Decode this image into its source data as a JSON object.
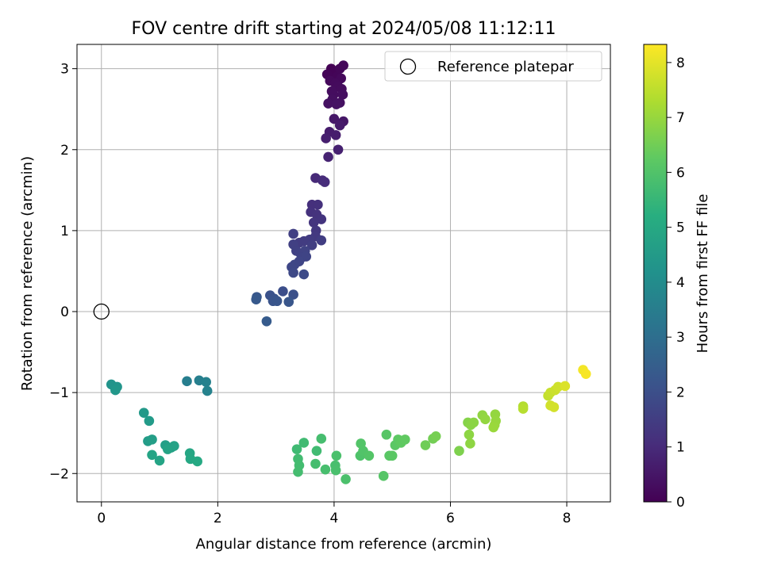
{
  "chart_data": {
    "type": "scatter",
    "title": "FOV centre drift starting at 2024/05/08 11:12:11",
    "xlabel": "Angular distance from reference (arcmin)",
    "ylabel": "Rotation from reference (arcmin)",
    "xlim": [
      -0.42,
      8.75
    ],
    "ylim": [
      -2.35,
      3.3
    ],
    "x_ticks": [
      0,
      2,
      4,
      6,
      8
    ],
    "y_ticks": [
      -2,
      -1,
      0,
      1,
      2,
      3
    ],
    "grid": true,
    "colorbar": {
      "label": "Hours from first FF file",
      "range": [
        0,
        8.33
      ],
      "ticks": [
        0,
        1,
        2,
        3,
        4,
        5,
        6,
        7,
        8
      ],
      "colormap": "viridis"
    },
    "legend": {
      "placement": "top-right",
      "entries": [
        {
          "label": "Reference platepar",
          "marker": "open-circle"
        }
      ]
    },
    "reference_point": {
      "x": 0,
      "y": 0
    },
    "series": [
      {
        "name": "FOV centre",
        "points": [
          [
            3.95,
            3.0,
            0.0
          ],
          [
            3.98,
            2.95,
            0.05
          ],
          [
            3.88,
            2.93,
            0.08
          ],
          [
            4.05,
            2.9,
            0.1
          ],
          [
            4.1,
            3.0,
            0.12
          ],
          [
            4.16,
            3.04,
            0.15
          ],
          [
            4.12,
            2.88,
            0.18
          ],
          [
            3.93,
            2.85,
            0.2
          ],
          [
            4.02,
            2.82,
            0.22
          ],
          [
            4.07,
            2.78,
            0.24
          ],
          [
            4.13,
            2.75,
            0.26
          ],
          [
            3.96,
            2.72,
            0.28
          ],
          [
            3.99,
            2.68,
            0.3
          ],
          [
            4.15,
            2.68,
            0.32
          ],
          [
            3.97,
            2.62,
            0.34
          ],
          [
            4.1,
            2.58,
            0.36
          ],
          [
            3.9,
            2.57,
            0.38
          ],
          [
            4.04,
            2.56,
            0.4
          ],
          [
            4.16,
            2.35,
            0.5
          ],
          [
            4.0,
            2.38,
            0.55
          ],
          [
            4.1,
            2.3,
            0.6
          ],
          [
            3.92,
            2.22,
            0.65
          ],
          [
            4.03,
            2.18,
            0.68
          ],
          [
            3.86,
            2.14,
            0.72
          ],
          [
            4.07,
            2.0,
            0.78
          ],
          [
            3.9,
            1.91,
            0.82
          ],
          [
            3.68,
            1.65,
            1.0
          ],
          [
            3.8,
            1.62,
            1.05
          ],
          [
            3.84,
            1.6,
            1.08
          ],
          [
            3.62,
            1.32,
            1.15
          ],
          [
            3.72,
            1.32,
            1.18
          ],
          [
            3.6,
            1.23,
            1.22
          ],
          [
            3.7,
            1.2,
            1.25
          ],
          [
            3.78,
            1.14,
            1.28
          ],
          [
            3.65,
            1.1,
            1.3
          ],
          [
            3.69,
            1.0,
            1.35
          ],
          [
            3.68,
            0.93,
            1.4
          ],
          [
            3.58,
            0.89,
            1.45
          ],
          [
            3.48,
            0.87,
            1.48
          ],
          [
            3.4,
            0.85,
            1.5
          ],
          [
            3.78,
            0.88,
            1.52
          ],
          [
            3.62,
            0.82,
            1.55
          ],
          [
            3.3,
            0.96,
            1.58
          ],
          [
            3.3,
            0.83,
            1.6
          ],
          [
            3.35,
            0.75,
            1.62
          ],
          [
            3.42,
            0.72,
            1.65
          ],
          [
            3.5,
            0.75,
            1.68
          ],
          [
            3.45,
            0.67,
            1.7
          ],
          [
            3.52,
            0.68,
            1.72
          ],
          [
            3.4,
            0.62,
            1.75
          ],
          [
            3.32,
            0.58,
            1.78
          ],
          [
            3.27,
            0.55,
            1.8
          ],
          [
            3.3,
            0.48,
            1.85
          ],
          [
            3.48,
            0.46,
            1.88
          ],
          [
            3.12,
            0.25,
            2.0
          ],
          [
            3.3,
            0.21,
            2.05
          ],
          [
            2.9,
            0.2,
            2.1
          ],
          [
            2.97,
            0.16,
            2.15
          ],
          [
            2.95,
            0.13,
            2.18
          ],
          [
            3.02,
            0.13,
            2.2
          ],
          [
            3.22,
            0.12,
            2.25
          ],
          [
            2.67,
            0.18,
            2.3
          ],
          [
            2.66,
            0.15,
            2.35
          ],
          [
            2.84,
            -0.12,
            2.4
          ],
          [
            1.47,
            -0.86,
            3.55
          ],
          [
            1.68,
            -0.85,
            3.6
          ],
          [
            1.8,
            -0.87,
            3.65
          ],
          [
            1.82,
            -0.98,
            3.7
          ],
          [
            0.17,
            -0.9,
            4.3
          ],
          [
            0.27,
            -0.93,
            4.35
          ],
          [
            0.24,
            -0.97,
            4.4
          ],
          [
            0.73,
            -1.25,
            4.5
          ],
          [
            0.82,
            -1.35,
            4.55
          ],
          [
            0.8,
            -1.6,
            4.6
          ],
          [
            0.87,
            -1.58,
            4.65
          ],
          [
            1.1,
            -1.65,
            4.7
          ],
          [
            1.2,
            -1.68,
            4.75
          ],
          [
            1.25,
            -1.66,
            4.8
          ],
          [
            1.14,
            -1.7,
            4.85
          ],
          [
            0.87,
            -1.77,
            4.88
          ],
          [
            1.0,
            -1.84,
            4.9
          ],
          [
            1.52,
            -1.75,
            4.95
          ],
          [
            1.53,
            -1.82,
            5.0
          ],
          [
            1.65,
            -1.85,
            5.05
          ],
          [
            3.36,
            -1.7,
            5.7
          ],
          [
            3.48,
            -1.62,
            5.72
          ],
          [
            3.7,
            -1.72,
            5.74
          ],
          [
            3.38,
            -1.82,
            5.76
          ],
          [
            3.4,
            -1.9,
            5.78
          ],
          [
            3.38,
            -1.98,
            5.8
          ],
          [
            3.68,
            -1.88,
            5.82
          ],
          [
            3.78,
            -1.57,
            5.84
          ],
          [
            3.85,
            -1.95,
            5.86
          ],
          [
            4.02,
            -1.9,
            5.88
          ],
          [
            4.03,
            -1.96,
            5.9
          ],
          [
            4.04,
            -1.78,
            5.92
          ],
          [
            4.2,
            -2.07,
            5.94
          ],
          [
            4.45,
            -1.78,
            6.0
          ],
          [
            4.5,
            -1.72,
            6.05
          ],
          [
            4.46,
            -1.63,
            6.08
          ],
          [
            4.6,
            -1.78,
            6.1
          ],
          [
            4.85,
            -2.03,
            6.12
          ],
          [
            4.9,
            -1.52,
            6.15
          ],
          [
            4.95,
            -1.78,
            6.18
          ],
          [
            5.0,
            -1.78,
            6.2
          ],
          [
            5.05,
            -1.65,
            6.22
          ],
          [
            5.1,
            -1.58,
            6.25
          ],
          [
            5.15,
            -1.62,
            6.28
          ],
          [
            5.22,
            -1.58,
            6.3
          ],
          [
            5.57,
            -1.65,
            6.5
          ],
          [
            5.7,
            -1.57,
            6.55
          ],
          [
            5.75,
            -1.54,
            6.6
          ],
          [
            6.15,
            -1.72,
            6.7
          ],
          [
            6.3,
            -1.37,
            6.8
          ],
          [
            6.35,
            -1.4,
            6.85
          ],
          [
            6.4,
            -1.37,
            6.88
          ],
          [
            6.32,
            -1.52,
            6.9
          ],
          [
            6.34,
            -1.63,
            6.92
          ],
          [
            6.55,
            -1.28,
            6.95
          ],
          [
            6.6,
            -1.33,
            6.98
          ],
          [
            6.77,
            -1.27,
            7.0
          ],
          [
            6.78,
            -1.35,
            7.02
          ],
          [
            6.76,
            -1.4,
            7.05
          ],
          [
            6.74,
            -1.43,
            7.08
          ],
          [
            7.25,
            -1.17,
            7.4
          ],
          [
            7.25,
            -1.2,
            7.45
          ],
          [
            7.68,
            -1.04,
            7.6
          ],
          [
            7.72,
            -1.0,
            7.65
          ],
          [
            7.8,
            -0.97,
            7.7
          ],
          [
            7.85,
            -0.93,
            7.75
          ],
          [
            7.72,
            -1.16,
            7.78
          ],
          [
            7.78,
            -1.18,
            7.8
          ],
          [
            7.97,
            -0.92,
            7.9
          ],
          [
            8.28,
            -0.72,
            8.2
          ],
          [
            8.33,
            -0.77,
            8.25
          ]
        ]
      }
    ]
  }
}
